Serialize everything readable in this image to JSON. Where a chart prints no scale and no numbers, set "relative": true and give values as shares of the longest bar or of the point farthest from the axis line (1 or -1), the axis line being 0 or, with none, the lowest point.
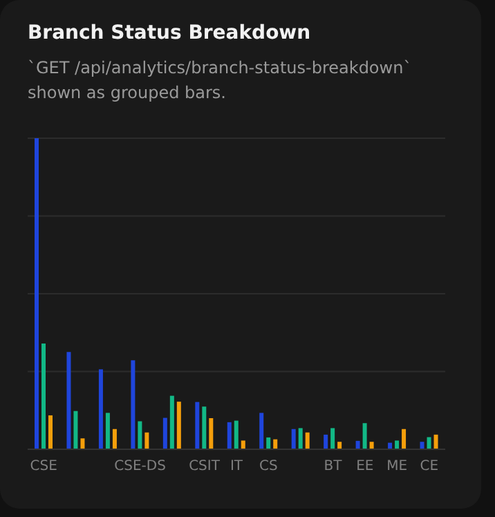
{
  "chart_data": {
    "type": "bar",
    "title": "Branch Status Breakdown",
    "subtitle": "`GET /api/analytics/branch-status-breakdown` shown as grouped bars.",
    "relative": true,
    "grid": "y",
    "legend": false,
    "categories": [
      "CSE",
      null,
      null,
      "CSE-DS",
      null,
      "CSIT",
      "IT",
      "CS",
      null,
      "BT",
      "EE",
      "ME",
      "CE"
    ],
    "series": [
      {
        "color": "#1f45dc",
        "values": [
          1,
          0.313,
          0.257,
          0.286,
          0.101,
          0.152,
          0.087,
          0.117,
          0.065,
          0.047,
          0.027,
          0.021,
          0.024
        ]
      },
      {
        "color": "#12b886",
        "values": [
          0.34,
          0.123,
          0.117,
          0.09,
          0.172,
          0.137,
          0.092,
          0.038,
          0.068,
          0.068,
          0.084,
          0.028,
          0.039
        ]
      },
      {
        "color": "#f59f0b",
        "values": [
          0.109,
          0.035,
          0.065,
          0.054,
          0.153,
          0.1,
          0.028,
          0.032,
          0.054,
          0.024,
          0.024,
          0.065,
          0.047
        ]
      }
    ]
  }
}
